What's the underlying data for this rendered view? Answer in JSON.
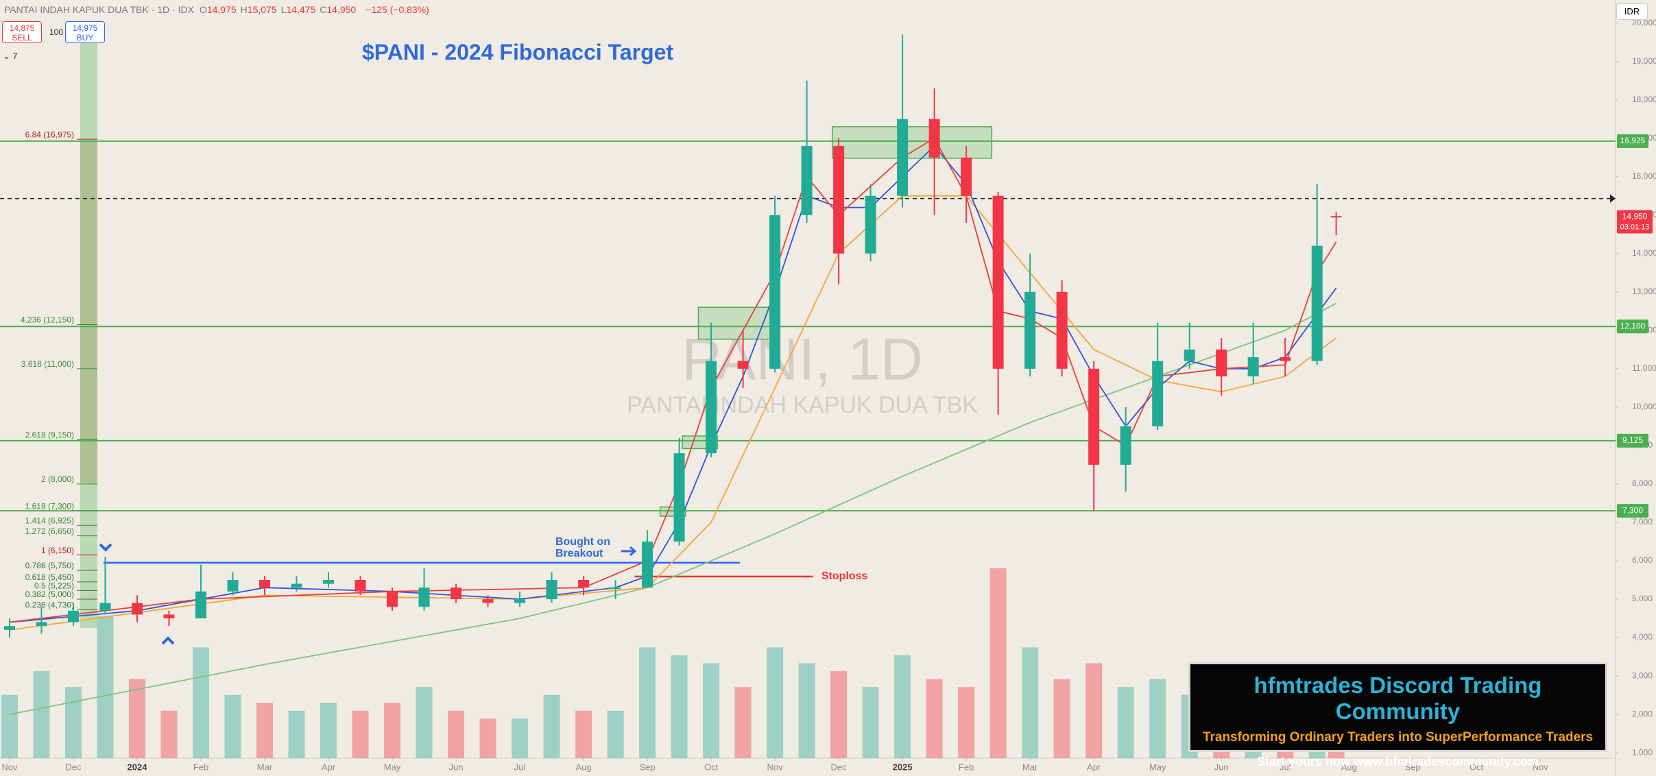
{
  "chart_data": {
    "type": "candlestick",
    "title": "$PANI - 2024 Fibonacci Target",
    "symbol": "PANTAI INDAH KAPUK DUA TBK · 1D · IDX",
    "quote": [
      {
        "key": "O",
        "value": "14,975"
      },
      {
        "key": "H",
        "value": "15,075"
      },
      {
        "key": "L",
        "value": "14,475"
      },
      {
        "key": "C",
        "value": "14,950"
      }
    ],
    "change": "−125 (−0.83%)",
    "sell": {
      "price": "14,875",
      "label": "SELL"
    },
    "buy": {
      "price": "14,975",
      "label": "BUY"
    },
    "lot": "100",
    "indicator_count": "7",
    "currency": "IDR",
    "watermark": {
      "ticker": "PANI, 1D",
      "name": "PANTAI INDAH KAPUK DUA TBK"
    },
    "annotations": {
      "breakout": [
        "Bought on",
        "Breakout"
      ],
      "stoploss": "Stoploss"
    },
    "ad": {
      "title": "hfmtrades Discord Trading Community",
      "subtitle": "Transforming Ordinary Traders into SuperPerformance Traders",
      "cta": "Start yours now www.hfmtradescommunity.com"
    },
    "ylim": [
      860,
      20600
    ],
    "xlim": [
      -0.15,
      25.18
    ],
    "yticks": [
      {
        "value": 1000,
        "label": "1,000"
      },
      {
        "value": 2000,
        "label": "2,000"
      },
      {
        "value": 3000,
        "label": "3,000"
      },
      {
        "value": 4000,
        "label": "4,000"
      },
      {
        "value": 5000,
        "label": "5,000"
      },
      {
        "value": 6000,
        "label": "6,000"
      },
      {
        "value": 7000,
        "label": "7,000"
      },
      {
        "value": 8000,
        "label": "8,000"
      },
      {
        "value": 9000,
        "label": "9,000"
      },
      {
        "value": 10000,
        "label": "10,000"
      },
      {
        "value": 11000,
        "label": "11,000"
      },
      {
        "value": 12000,
        "label": "12,000"
      },
      {
        "value": 13000,
        "label": "13,000"
      },
      {
        "value": 14000,
        "label": "14,000"
      },
      {
        "value": 15000,
        "label": "15,000"
      },
      {
        "value": 16000,
        "label": "16,000"
      },
      {
        "value": 17000,
        "label": "17,000"
      },
      {
        "value": 18000,
        "label": "18,000"
      },
      {
        "value": 19000,
        "label": "19,000"
      },
      {
        "value": 20000,
        "label": "20,000"
      }
    ],
    "xticks": [
      {
        "value": 0,
        "label": "Nov"
      },
      {
        "value": 1,
        "label": "Dec"
      },
      {
        "value": 2,
        "label": "2024"
      },
      {
        "value": 3,
        "label": "Feb"
      },
      {
        "value": 4,
        "label": "Mar"
      },
      {
        "value": 5,
        "label": "Apr"
      },
      {
        "value": 6,
        "label": "May"
      },
      {
        "value": 7,
        "label": "Jun"
      },
      {
        "value": 8,
        "label": "Jul"
      },
      {
        "value": 9,
        "label": "Aug"
      },
      {
        "value": 10,
        "label": "Sep"
      },
      {
        "value": 11,
        "label": "Oct"
      },
      {
        "value": 12,
        "label": "Nov"
      },
      {
        "value": 13,
        "label": "Dec"
      },
      {
        "value": 14,
        "label": "2025"
      },
      {
        "value": 15,
        "label": "Feb"
      },
      {
        "value": 16,
        "label": "Mar"
      },
      {
        "value": 17,
        "label": "Apr"
      },
      {
        "value": 18,
        "label": "May"
      },
      {
        "value": 19,
        "label": "Jun"
      },
      {
        "value": 20,
        "label": "Jul"
      },
      {
        "value": 21,
        "label": "Aug"
      },
      {
        "value": 22,
        "label": "Sep"
      },
      {
        "value": 23,
        "label": "Oct"
      },
      {
        "value": 24,
        "label": "Nov"
      }
    ],
    "up_color": "#22ab94",
    "down_color": "#f23645",
    "candles": {
      "x": [
        0,
        0.5,
        1,
        1.5,
        2,
        2.5,
        3,
        3.5,
        4,
        4.5,
        5,
        5.5,
        6,
        6.5,
        7,
        7.5,
        8,
        8.5,
        9,
        9.5,
        10,
        10.5,
        11,
        11.5,
        12,
        12.5,
        13,
        13.5,
        14,
        14.5,
        15,
        15.5,
        16,
        16.5,
        17,
        17.5,
        18,
        18.5,
        19,
        19.5,
        20,
        20.5,
        20.8
      ],
      "open": [
        4200,
        4300,
        4400,
        4700,
        4900,
        4600,
        4500,
        5200,
        5500,
        5300,
        5400,
        5500,
        5200,
        4800,
        5300,
        5000,
        4900,
        5000,
        5500,
        5300,
        5300,
        6500,
        8800,
        11200,
        11000,
        15000,
        16800,
        14000,
        15500,
        17500,
        16500,
        15500,
        11000,
        13000,
        11000,
        8500,
        9500,
        11200,
        11500,
        10800,
        11300,
        11200,
        14975
      ],
      "high": [
        4500,
        4800,
        4900,
        6100,
        5100,
        4700,
        5900,
        5700,
        5600,
        5600,
        5700,
        5600,
        5300,
        5800,
        5400,
        5100,
        5200,
        5700,
        5600,
        5500,
        6800,
        9200,
        12200,
        12000,
        15500,
        18500,
        17000,
        15800,
        19700,
        18300,
        16800,
        15600,
        14000,
        13300,
        11200,
        10000,
        12200,
        12200,
        11800,
        12200,
        11800,
        15800,
        15075
      ],
      "low": [
        4000,
        4100,
        4300,
        4600,
        4400,
        4300,
        4500,
        5100,
        5100,
        5200,
        5300,
        5100,
        4700,
        4700,
        4900,
        4800,
        4800,
        4900,
        5100,
        5000,
        5300,
        6400,
        8700,
        10500,
        10900,
        14800,
        13200,
        13800,
        15200,
        15000,
        14800,
        9800,
        10800,
        10800,
        7300,
        7800,
        9400,
        11000,
        10300,
        10600,
        10800,
        11100,
        14475
      ],
      "close": [
        4300,
        4400,
        4700,
        4900,
        4600,
        4500,
        5200,
        5500,
        5300,
        5400,
        5500,
        5200,
        4800,
        5300,
        5000,
        4900,
        5000,
        5500,
        5300,
        5300,
        6500,
        8800,
        11200,
        11000,
        15000,
        16800,
        14000,
        15500,
        17500,
        16500,
        15500,
        11000,
        13000,
        11000,
        8500,
        9500,
        11200,
        11500,
        10800,
        11300,
        11200,
        14200,
        14950
      ],
      "volume": [
        40,
        55,
        45,
        90,
        50,
        30,
        70,
        40,
        35,
        30,
        35,
        30,
        35,
        45,
        30,
        25,
        25,
        40,
        30,
        30,
        70,
        65,
        60,
        45,
        70,
        60,
        55,
        45,
        65,
        50,
        45,
        120,
        70,
        50,
        60,
        45,
        50,
        40,
        35,
        40,
        35,
        55,
        30
      ]
    },
    "overlays": [
      {
        "color": "#7cc47c",
        "x": [
          0,
          4,
          8,
          10,
          12,
          14,
          16,
          17,
          18,
          19,
          20,
          20.8
        ],
        "values": [
          2000,
          3300,
          4500,
          5300,
          6700,
          8200,
          9600,
          10200,
          10800,
          11400,
          12000,
          12700
        ]
      },
      {
        "color": "#f5a63a",
        "x": [
          0,
          4,
          8,
          10,
          11,
          12,
          13,
          14,
          15,
          16,
          17,
          18,
          19,
          20,
          20.8
        ],
        "values": [
          4200,
          5100,
          5000,
          5300,
          7000,
          10500,
          14000,
          15500,
          15500,
          13500,
          11500,
          10700,
          10400,
          10800,
          11800
        ]
      },
      {
        "color": "#2f56d8",
        "x": [
          0,
          2,
          4,
          6,
          8,
          9.5,
          10,
          10.5,
          11,
          11.5,
          12,
          12.5,
          13,
          13.5,
          14,
          14.5,
          15,
          15.5,
          16,
          16.5,
          17,
          17.5,
          18,
          18.5,
          19,
          19.5,
          20,
          20.8
        ],
        "values": [
          4400,
          4700,
          5300,
          5200,
          5000,
          5300,
          5600,
          7000,
          9000,
          10800,
          13000,
          15500,
          15200,
          15200,
          16000,
          16800,
          15800,
          13800,
          12500,
          12300,
          10800,
          9500,
          10500,
          11200,
          11000,
          11000,
          11300,
          13100
        ]
      },
      {
        "color": "#e8403a",
        "x": [
          0,
          3,
          6,
          9,
          10,
          10.5,
          11,
          12,
          12.5,
          13,
          14,
          14.5,
          15,
          15.5,
          16,
          16.5,
          17,
          17.5,
          18,
          19,
          20,
          20.5,
          20.8
        ],
        "values": [
          4400,
          5000,
          5200,
          5300,
          6000,
          8000,
          10500,
          13500,
          16000,
          15000,
          16500,
          17000,
          15500,
          12500,
          12300,
          11800,
          9500,
          9000,
          10800,
          11000,
          11100,
          13500,
          14300
        ]
      }
    ],
    "levels": [
      {
        "value": 16925,
        "label": "16,925"
      },
      {
        "value": 12100,
        "label": "12,100"
      },
      {
        "value": 9125,
        "label": "9,125"
      },
      {
        "value": 7300,
        "label": "7,300"
      }
    ],
    "level_color": "#4caf50",
    "dashed_level": 15430,
    "price_tag": {
      "value": 14950,
      "label": "14,950",
      "timer": "03:01:13"
    },
    "zones": [
      {
        "x": [
          10.8,
          12
        ],
        "y": [
          11770,
          12600
        ]
      },
      {
        "x": [
          12.9,
          15.4
        ],
        "y": [
          16480,
          17300
        ]
      },
      {
        "x": [
          10.55,
          11.1
        ],
        "y": [
          8920,
          9250
        ]
      },
      {
        "x": [
          10.2,
          10.6
        ],
        "y": [
          7160,
          7400
        ]
      }
    ],
    "segments": [
      {
        "x": [
          1.47,
          11.45
        ],
        "value": 5950,
        "color": "#2962ff"
      },
      {
        "x": [
          9.8,
          12.6
        ],
        "value": 5590,
        "color": "#e53935"
      }
    ],
    "fib_levels": [
      {
        "value": 16975,
        "label": "6.84 (16,975)",
        "color": "#b71c1c"
      },
      {
        "value": 12150,
        "label": "4.236 (12,150)",
        "color": "#388e3c"
      },
      {
        "value": 11000,
        "label": "3.618 (11,000)",
        "color": "#388e3c"
      },
      {
        "value": 9150,
        "label": "2.618 (9,150)",
        "color": "#388e3c"
      },
      {
        "value": 8000,
        "label": "2 (8,000)",
        "color": "#388e3c"
      },
      {
        "value": 7300,
        "label": "1.618 (7,300)",
        "color": "#388e3c"
      },
      {
        "value": 6925,
        "label": "1.414 (6,925)",
        "color": "#388e3c"
      },
      {
        "value": 6650,
        "label": "1.272 (6,650)",
        "color": "#388e3c"
      },
      {
        "value": 6150,
        "label": "1 (6,150)",
        "color": "#b71c1c"
      },
      {
        "value": 5750,
        "label": "0.786 (5,750)",
        "color": "#2e7d32"
      },
      {
        "value": 5450,
        "label": "0.618 (5,450)",
        "color": "#2e7d32"
      },
      {
        "value": 5225,
        "label": "0.5 (5,225)",
        "color": "#2e7d32"
      },
      {
        "value": 5000,
        "label": "0.382 (5,000)",
        "color": "#2e7d32"
      },
      {
        "value": 4730,
        "label": "0.236 (4,730)",
        "color": "#2e7d32"
      }
    ]
  }
}
